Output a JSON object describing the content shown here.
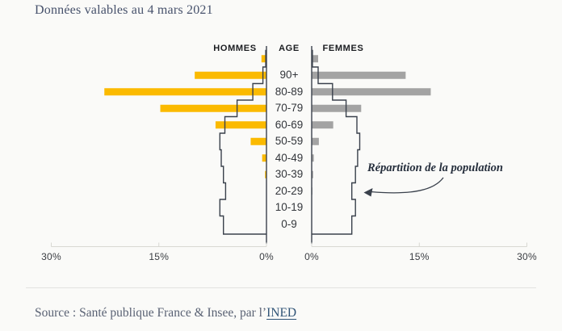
{
  "page": {
    "title": "Données valables au 4 mars 2021",
    "source_prefix": "Source : Santé publique France & Insee, par l’",
    "source_link": "INED"
  },
  "chart_data": {
    "type": "bar",
    "subtype": "population-pyramid",
    "title": "Données valables au 4 mars 2021",
    "headers": {
      "left": "HOMMES",
      "center": "AGE",
      "right": "FEMMES"
    },
    "annotation": "Répartition de la population",
    "unit": "%",
    "axis": {
      "min": 0,
      "max": 30,
      "ticks_pct": [
        30,
        15,
        0
      ],
      "ticks_left_labels": [
        "30%",
        "15%",
        "0%"
      ],
      "ticks_right_labels": [
        "0%",
        "15%",
        "30%"
      ]
    },
    "rows": [
      {
        "age": "",
        "hommes_pct": 0.7,
        "femmes_pct": 0.9,
        "pop_hommes_pct": 0.1,
        "pop_femmes_pct": 0.1
      },
      {
        "age": "90+",
        "hommes_pct": 10.0,
        "femmes_pct": 13.1,
        "pop_hommes_pct": 0.5,
        "pop_femmes_pct": 0.9
      },
      {
        "age": "80-89",
        "hommes_pct": 22.6,
        "femmes_pct": 16.6,
        "pop_hommes_pct": 1.9,
        "pop_femmes_pct": 2.9
      },
      {
        "age": "70-79",
        "hommes_pct": 14.8,
        "femmes_pct": 6.9,
        "pop_hommes_pct": 4.1,
        "pop_femmes_pct": 4.8
      },
      {
        "age": "60-69",
        "hommes_pct": 7.1,
        "femmes_pct": 3.0,
        "pop_hommes_pct": 5.8,
        "pop_femmes_pct": 6.3
      },
      {
        "age": "50-59",
        "hommes_pct": 2.2,
        "femmes_pct": 1.0,
        "pop_hommes_pct": 6.5,
        "pop_femmes_pct": 6.7
      },
      {
        "age": "40-49",
        "hommes_pct": 0.6,
        "femmes_pct": 0.3,
        "pop_hommes_pct": 6.3,
        "pop_femmes_pct": 6.4
      },
      {
        "age": "30-39",
        "hommes_pct": 0.2,
        "femmes_pct": 0.2,
        "pop_hommes_pct": 6.0,
        "pop_femmes_pct": 6.1
      },
      {
        "age": "20-29",
        "hommes_pct": 0.0,
        "femmes_pct": 0.1,
        "pop_hommes_pct": 5.7,
        "pop_femmes_pct": 5.6
      },
      {
        "age": "10-19",
        "hommes_pct": 0.0,
        "femmes_pct": 0.0,
        "pop_hommes_pct": 6.5,
        "pop_femmes_pct": 6.1
      },
      {
        "age": "0-9",
        "hommes_pct": 0.0,
        "femmes_pct": 0.0,
        "pop_hommes_pct": 6.0,
        "pop_femmes_pct": 5.6
      }
    ],
    "colors": {
      "hommes_bar": "#FBBA00",
      "femmes_bar": "#A3A3A3",
      "outline": "#3A414C",
      "axis_light": "#D8D8D3"
    },
    "legend_position": "none",
    "grid": false
  }
}
